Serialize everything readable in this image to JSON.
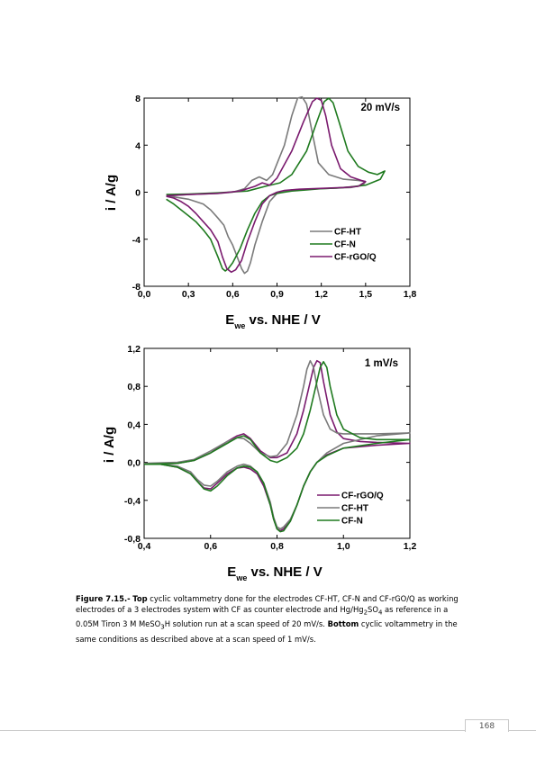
{
  "chart_data": [
    {
      "type": "line",
      "annotation": "20 mV/s",
      "xlabel_main": "E",
      "xlabel_sub": "we",
      "xlabel_rest": " vs. NHE / V",
      "ylabel": "i / A/g",
      "xlim": [
        0.0,
        1.8
      ],
      "ylim": [
        -8,
        8
      ],
      "xticks": [
        "0,0",
        "0,3",
        "0,6",
        "0,9",
        "1,2",
        "1,5",
        "1,8"
      ],
      "xtick_values": [
        0.0,
        0.3,
        0.6,
        0.9,
        1.2,
        1.5,
        1.8
      ],
      "yticks": [
        "8",
        "4",
        "0",
        "-4",
        "-8"
      ],
      "ytick_values": [
        8,
        4,
        0,
        -4,
        -8
      ],
      "legend_position": "bottom-right",
      "series": [
        {
          "name": "CF-HT",
          "color": "#7a7a7a",
          "x": [
            0.15,
            0.3,
            0.5,
            0.6,
            0.68,
            0.73,
            0.78,
            0.83,
            0.87,
            0.95,
            1.0,
            1.04,
            1.07,
            1.1,
            1.14,
            1.18,
            1.25,
            1.35,
            1.45,
            1.5,
            1.48,
            1.4,
            1.3,
            1.2,
            1.1,
            1.0,
            0.9,
            0.85,
            0.8,
            0.75,
            0.72,
            0.7,
            0.68,
            0.66,
            0.63,
            0.6,
            0.57,
            0.54,
            0.5,
            0.45,
            0.4,
            0.3,
            0.2,
            0.15
          ],
          "y": [
            -0.3,
            -0.2,
            -0.1,
            0.0,
            0.3,
            1.0,
            1.3,
            1.0,
            1.5,
            4.0,
            6.5,
            8.0,
            8.1,
            7.5,
            5.0,
            2.5,
            1.5,
            1.1,
            1.0,
            0.9,
            0.6,
            0.4,
            0.35,
            0.3,
            0.25,
            0.2,
            -0.1,
            -0.8,
            -2.5,
            -4.5,
            -6.0,
            -6.7,
            -6.9,
            -6.5,
            -5.5,
            -4.5,
            -3.8,
            -2.8,
            -2.2,
            -1.5,
            -1.0,
            -0.6,
            -0.4,
            -0.3
          ]
        },
        {
          "name": "CF-N",
          "color": "#1f7a1f",
          "x": [
            0.15,
            0.3,
            0.5,
            0.7,
            0.82,
            0.92,
            1.0,
            1.1,
            1.17,
            1.22,
            1.25,
            1.28,
            1.32,
            1.38,
            1.45,
            1.52,
            1.58,
            1.63,
            1.6,
            1.5,
            1.4,
            1.3,
            1.2,
            1.1,
            1.0,
            0.95,
            0.9,
            0.85,
            0.8,
            0.75,
            0.7,
            0.65,
            0.6,
            0.57,
            0.55,
            0.53,
            0.5,
            0.45,
            0.4,
            0.35,
            0.3,
            0.25,
            0.2,
            0.15
          ],
          "y": [
            -0.2,
            -0.15,
            -0.05,
            0.1,
            0.5,
            0.8,
            1.5,
            3.5,
            6.0,
            7.7,
            8.0,
            7.6,
            6.0,
            3.5,
            2.2,
            1.7,
            1.5,
            1.8,
            1.1,
            0.6,
            0.45,
            0.35,
            0.3,
            0.2,
            0.1,
            0.0,
            -0.1,
            -0.3,
            -0.8,
            -1.8,
            -3.2,
            -4.8,
            -6.0,
            -6.5,
            -6.7,
            -6.5,
            -5.5,
            -4.0,
            -3.2,
            -2.5,
            -2.0,
            -1.5,
            -1.0,
            -0.6
          ]
        },
        {
          "name": "CF-rGO/Q",
          "color": "#7a1a6e",
          "x": [
            0.15,
            0.3,
            0.5,
            0.65,
            0.75,
            0.8,
            0.85,
            0.9,
            1.0,
            1.08,
            1.14,
            1.17,
            1.2,
            1.23,
            1.27,
            1.33,
            1.4,
            1.47,
            1.5,
            1.45,
            1.35,
            1.25,
            1.15,
            1.05,
            0.95,
            0.9,
            0.85,
            0.8,
            0.75,
            0.7,
            0.66,
            0.62,
            0.59,
            0.56,
            0.53,
            0.5,
            0.45,
            0.4,
            0.35,
            0.3,
            0.25,
            0.2,
            0.15
          ],
          "y": [
            -0.3,
            -0.2,
            -0.1,
            0.1,
            0.5,
            0.8,
            0.6,
            1.2,
            3.5,
            6.0,
            7.7,
            8.0,
            7.8,
            6.5,
            4.0,
            2.0,
            1.3,
            1.0,
            0.9,
            0.5,
            0.4,
            0.35,
            0.3,
            0.25,
            0.15,
            0.0,
            -0.3,
            -1.0,
            -2.5,
            -4.2,
            -5.8,
            -6.6,
            -6.8,
            -6.5,
            -5.5,
            -4.2,
            -3.2,
            -2.5,
            -1.8,
            -1.2,
            -0.8,
            -0.5,
            -0.35
          ]
        }
      ]
    },
    {
      "type": "line",
      "annotation": "1 mV/s",
      "xlabel_main": "E",
      "xlabel_sub": "we",
      "xlabel_rest": " vs. NHE / V",
      "ylabel": "i / A/g",
      "xlim": [
        0.4,
        1.2
      ],
      "ylim": [
        -0.8,
        1.2
      ],
      "xticks": [
        "0,4",
        "0,6",
        "0,8",
        "1,0",
        "1,2"
      ],
      "xtick_values": [
        0.4,
        0.6,
        0.8,
        1.0,
        1.2
      ],
      "yticks": [
        "1,2",
        "0,8",
        "0,4",
        "0,0",
        "-0,4",
        "-0,8"
      ],
      "ytick_values": [
        1.2,
        0.8,
        0.4,
        0.0,
        -0.4,
        -0.8
      ],
      "legend_position": "bottom-right",
      "series": [
        {
          "name": "CF-rGO/Q",
          "color": "#7a1a6e",
          "x": [
            0.4,
            0.5,
            0.55,
            0.6,
            0.65,
            0.68,
            0.7,
            0.72,
            0.75,
            0.78,
            0.8,
            0.83,
            0.86,
            0.88,
            0.9,
            0.91,
            0.92,
            0.93,
            0.94,
            0.96,
            0.98,
            1.0,
            1.05,
            1.1,
            1.2,
            1.2,
            1.1,
            1.0,
            0.95,
            0.92,
            0.9,
            0.88,
            0.86,
            0.84,
            0.82,
            0.81,
            0.8,
            0.79,
            0.78,
            0.76,
            0.74,
            0.72,
            0.7,
            0.68,
            0.65,
            0.62,
            0.6,
            0.58,
            0.56,
            0.54,
            0.5,
            0.45,
            0.4
          ],
          "y": [
            -0.02,
            -0.01,
            0.02,
            0.1,
            0.22,
            0.28,
            0.3,
            0.25,
            0.12,
            0.05,
            0.05,
            0.1,
            0.3,
            0.55,
            0.85,
            1.0,
            1.07,
            1.05,
            0.85,
            0.5,
            0.32,
            0.25,
            0.22,
            0.21,
            0.2,
            0.2,
            0.18,
            0.15,
            0.08,
            0.0,
            -0.1,
            -0.25,
            -0.45,
            -0.62,
            -0.7,
            -0.72,
            -0.7,
            -0.6,
            -0.45,
            -0.25,
            -0.12,
            -0.07,
            -0.05,
            -0.06,
            -0.12,
            -0.22,
            -0.28,
            -0.27,
            -0.2,
            -0.12,
            -0.05,
            -0.02,
            -0.02
          ]
        },
        {
          "name": "CF-HT",
          "color": "#7a7a7a",
          "x": [
            0.4,
            0.5,
            0.55,
            0.6,
            0.65,
            0.68,
            0.7,
            0.72,
            0.75,
            0.78,
            0.8,
            0.83,
            0.86,
            0.88,
            0.89,
            0.9,
            0.91,
            0.92,
            0.94,
            0.96,
            0.98,
            1.0,
            1.05,
            1.1,
            1.2,
            1.2,
            1.1,
            1.0,
            0.95,
            0.92,
            0.9,
            0.88,
            0.86,
            0.84,
            0.82,
            0.81,
            0.8,
            0.79,
            0.78,
            0.76,
            0.74,
            0.72,
            0.7,
            0.68,
            0.65,
            0.62,
            0.6,
            0.58,
            0.56,
            0.54,
            0.5,
            0.45,
            0.4
          ],
          "y": [
            -0.01,
            0.0,
            0.03,
            0.12,
            0.22,
            0.26,
            0.25,
            0.2,
            0.1,
            0.06,
            0.07,
            0.2,
            0.5,
            0.8,
            0.98,
            1.07,
            1.0,
            0.8,
            0.5,
            0.35,
            0.31,
            0.3,
            0.3,
            0.3,
            0.31,
            0.31,
            0.28,
            0.2,
            0.1,
            0.0,
            -0.1,
            -0.25,
            -0.45,
            -0.6,
            -0.68,
            -0.7,
            -0.68,
            -0.58,
            -0.42,
            -0.22,
            -0.1,
            -0.04,
            -0.02,
            -0.04,
            -0.1,
            -0.2,
            -0.25,
            -0.24,
            -0.18,
            -0.1,
            -0.04,
            -0.02,
            -0.01
          ]
        },
        {
          "name": "CF-N",
          "color": "#1f7a1f",
          "x": [
            0.4,
            0.5,
            0.55,
            0.6,
            0.65,
            0.68,
            0.7,
            0.72,
            0.75,
            0.78,
            0.8,
            0.83,
            0.86,
            0.88,
            0.9,
            0.92,
            0.93,
            0.94,
            0.95,
            0.96,
            0.98,
            1.0,
            1.05,
            1.1,
            1.2,
            1.2,
            1.1,
            1.0,
            0.95,
            0.92,
            0.9,
            0.88,
            0.86,
            0.84,
            0.82,
            0.81,
            0.8,
            0.79,
            0.78,
            0.76,
            0.74,
            0.72,
            0.7,
            0.68,
            0.65,
            0.62,
            0.6,
            0.58,
            0.56,
            0.54,
            0.5,
            0.45,
            0.4
          ],
          "y": [
            -0.02,
            -0.01,
            0.02,
            0.1,
            0.2,
            0.26,
            0.28,
            0.24,
            0.1,
            0.02,
            0.0,
            0.05,
            0.15,
            0.3,
            0.55,
            0.85,
            1.0,
            1.06,
            1.0,
            0.8,
            0.5,
            0.35,
            0.26,
            0.24,
            0.24,
            0.24,
            0.2,
            0.15,
            0.07,
            0.0,
            -0.1,
            -0.25,
            -0.45,
            -0.62,
            -0.72,
            -0.73,
            -0.7,
            -0.6,
            -0.45,
            -0.22,
            -0.1,
            -0.05,
            -0.04,
            -0.06,
            -0.14,
            -0.25,
            -0.3,
            -0.28,
            -0.2,
            -0.12,
            -0.05,
            -0.02,
            -0.02
          ]
        }
      ]
    }
  ],
  "caption": {
    "figure_label": "Figure 7.15.-",
    "top_label": "Top",
    "text_1": " cyclic voltammetry done for the electrodes CF-HT, CF-N and CF-rGO/Q as working electrodes of a 3 electrodes system with CF as counter electrode and Hg/Hg",
    "sub_1": "2",
    "text_2": "SO",
    "sub_2": "4",
    "text_3": " as reference in a 0.05M Tiron 3 M MeSO",
    "sub_3": "3",
    "text_4": "H solution run at a scan speed of 20 mV/s. ",
    "bottom_label": "Bottom",
    "text_5": " cyclic voltammetry in the same conditions as described above at a scan speed of 1 mV/s."
  },
  "page_number": "168"
}
